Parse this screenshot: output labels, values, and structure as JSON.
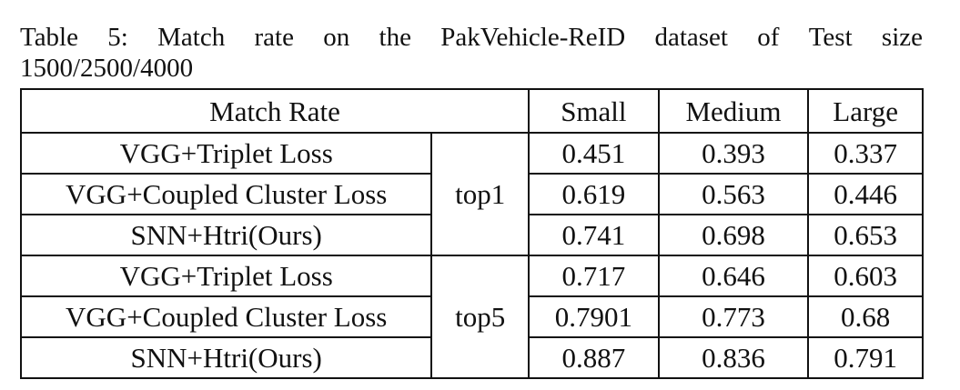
{
  "caption": {
    "line1_words": [
      "Table",
      "5:",
      "Match",
      "rate",
      "on",
      "the",
      "PakVehicle-ReID",
      "dataset",
      "of",
      "Test",
      "size"
    ],
    "line2": "1500/2500/4000"
  },
  "table": {
    "header": {
      "match_rate": "Match Rate",
      "small": "Small",
      "medium": "Medium",
      "large": "Large"
    },
    "groups": [
      {
        "metric": "top1",
        "rows": [
          {
            "method": "VGG+Triplet Loss",
            "small": "0.451",
            "medium": "0.393",
            "large": "0.337"
          },
          {
            "method": "VGG+Coupled Cluster Loss",
            "small": "0.619",
            "medium": "0.563",
            "large": "0.446"
          },
          {
            "method": "SNN+Htri(Ours)",
            "small": "0.741",
            "medium": "0.698",
            "large": "0.653"
          }
        ]
      },
      {
        "metric": "top5",
        "rows": [
          {
            "method": "VGG+Triplet Loss",
            "small": "0.717",
            "medium": "0.646",
            "large": "0.603"
          },
          {
            "method": "VGG+Coupled Cluster Loss",
            "small": "0.7901",
            "medium": "0.773",
            "large": "0.68"
          },
          {
            "method": "SNN+Htri(Ours)",
            "small": "0.887",
            "medium": "0.836",
            "large": "0.791"
          }
        ]
      }
    ]
  }
}
